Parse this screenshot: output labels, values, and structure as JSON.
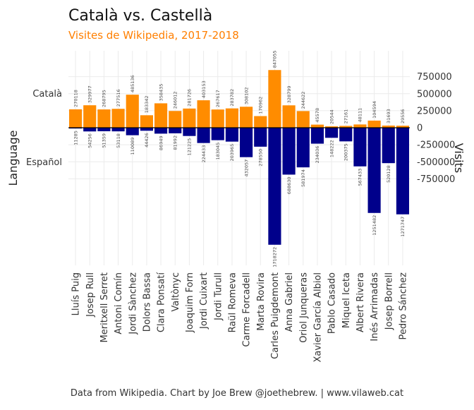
{
  "chart_data": {
    "type": "bar",
    "title": "Català vs. Castellà",
    "subtitle": "Visites de Wikipedia, 2017-2018",
    "caption": "Data from Wikipedia. Chart by Joe Brew @joethebrew. | www.vilaweb.cat",
    "ylabel_left": "Language",
    "ylabel_right": "Visits",
    "left_ticks": [
      "Català",
      "Español"
    ],
    "yticks": [
      750000,
      500000,
      250000,
      0,
      -250000,
      -500000,
      -750000
    ],
    "ytick_labels": [
      "750000",
      "500000",
      "250000",
      "0",
      "-250000",
      "-500000",
      "-750000"
    ],
    "categories": [
      "Lluís Puig",
      "Josep Rull",
      "Meritxell Serret",
      "Antoni Comín",
      "Jordi Sànchez",
      "Dolors Bassa",
      "Clara Ponsatí",
      "Valtònyc",
      "Joaquim Forn",
      "Jordi Cuixart",
      "Jordi Turull",
      "Raül Romeva",
      "Carme Forcadell",
      "Marta Rovira",
      "Carles Puigdemont",
      "Anna Gabriel",
      "Oriol Junqueras",
      "Xavier García Albiol",
      "Pablo Casado",
      "Miquel Iceta",
      "Albert Rivera",
      "Inés Arrimadas",
      "Josep Borrell",
      "Pedro Sánchez"
    ],
    "series": [
      {
        "name": "Català",
        "color": "#FF8C00",
        "values": [
          270118,
          329977,
          268795,
          277516,
          485136,
          183342,
          358435,
          246012,
          281726,
          403153,
          267617,
          283782,
          308102,
          170962,
          847055,
          328799,
          244622,
          45578,
          20544,
          27161,
          48111,
          104594,
          31693,
          29556
        ],
        "labels": [
          "270118",
          "329977",
          "268795",
          "277516",
          "485136",
          "183342",
          "358435",
          "246012",
          "281726",
          "403153",
          "267617",
          "283782",
          "308102",
          "170962",
          "847055",
          "328799",
          "244622",
          "45578",
          "20544",
          "27161",
          "48111",
          "104594",
          "31693",
          "29556"
        ]
      },
      {
        "name": "Español",
        "color": "#00008B",
        "values": [
          -11285,
          -54256,
          -51359,
          -53118,
          -110089,
          -44426,
          -86949,
          -81992,
          -121225,
          -224433,
          -183045,
          -203965,
          -432057,
          -278550,
          -1718272,
          -688630,
          -581974,
          -234036,
          -148222,
          -200375,
          -567433,
          -1251482,
          -520128,
          -1271747
        ],
        "labels": [
          "11285",
          "54256",
          "51359",
          "53118",
          "110089",
          "44426",
          "86949",
          "81992",
          "121225",
          "224433",
          "183045",
          "203965",
          "432057",
          "278550",
          "1718272",
          "688630",
          "581974",
          "234036",
          "148222",
          "200375",
          "567433",
          "1251482",
          "520128",
          "1271747"
        ]
      }
    ],
    "grid": true,
    "legend": "none"
  }
}
